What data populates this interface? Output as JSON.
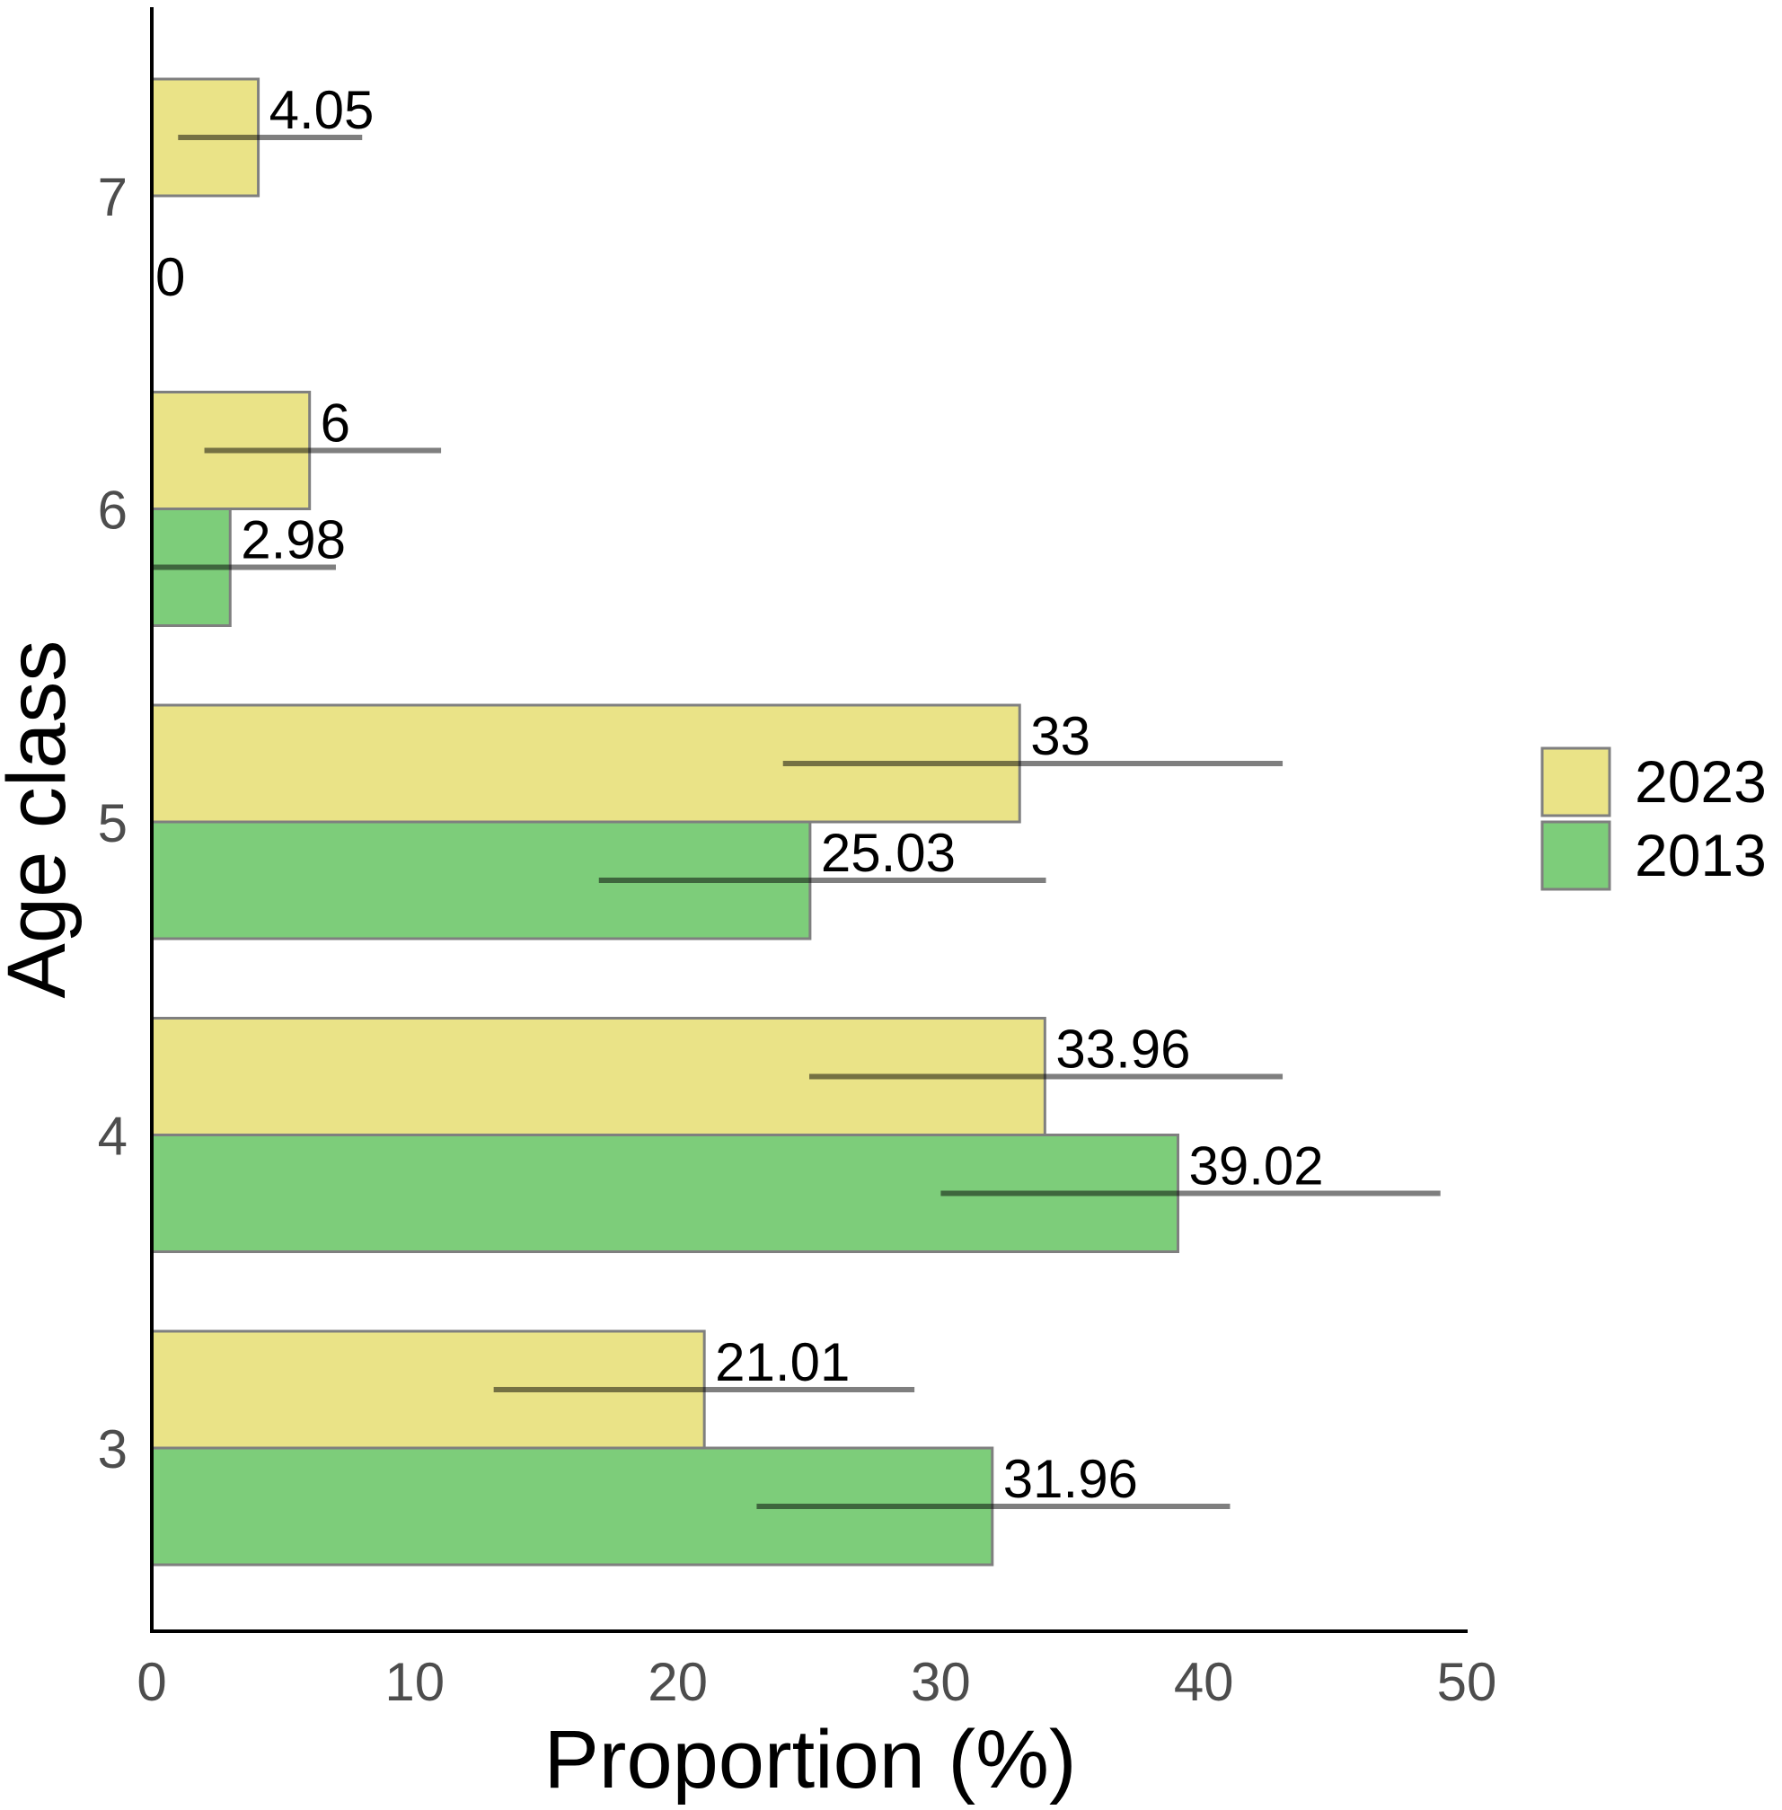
{
  "chart_data": {
    "type": "bar",
    "orientation": "horizontal",
    "categories": [
      "3",
      "4",
      "5",
      "6",
      "7"
    ],
    "series": [
      {
        "name": "2023",
        "color": "#EAE387",
        "values": [
          21.01,
          33.96,
          33.0,
          6.0,
          4.05
        ],
        "labels": [
          "21.01",
          "33.96",
          "33",
          "6",
          "4.05"
        ],
        "error_low": [
          13,
          25,
          24,
          2,
          1
        ],
        "error_high": [
          29,
          43,
          43,
          11,
          8
        ]
      },
      {
        "name": "2013",
        "color": "#7DCD7A",
        "values": [
          31.96,
          39.02,
          25.03,
          2.98,
          0
        ],
        "labels": [
          "31.96",
          "39.02",
          "25.03",
          "2.98",
          "0"
        ],
        "error_low": [
          23,
          30,
          17,
          0,
          null
        ],
        "error_high": [
          41,
          49,
          34,
          7,
          null
        ]
      }
    ],
    "xlabel": "Proportion (%)",
    "ylabel": "Age class",
    "xlim": [
      0,
      50
    ],
    "xticks": [
      "0",
      "10",
      "20",
      "30",
      "40",
      "50"
    ],
    "grid": false,
    "legend_position": "right"
  }
}
